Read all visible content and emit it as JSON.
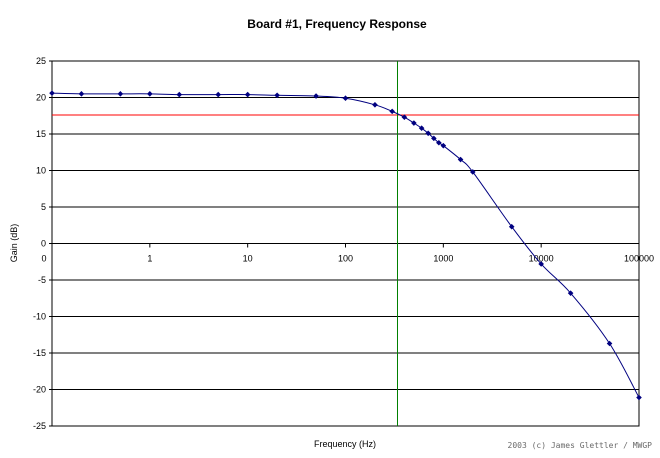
{
  "chart_data": {
    "type": "scatter",
    "title": "Board #1, Frequency Response",
    "xlabel": "Frequency (Hz)",
    "ylabel": "Gain (dB)",
    "xscale": "log",
    "xlim": [
      0.1,
      100000
    ],
    "ylim": [
      -25,
      25
    ],
    "y_ticks": [
      25,
      20,
      15,
      10,
      5,
      0,
      -5,
      -10,
      -15,
      -20,
      -25
    ],
    "x_tick_labels": [
      "0",
      "1",
      "10",
      "100",
      "1000",
      "10000",
      "100000"
    ],
    "grid": "horizontal",
    "legend": "none",
    "series": [
      {
        "color": "#000080",
        "marker": "diamond",
        "line": "smooth",
        "points": [
          [
            0.1,
            20.6
          ],
          [
            0.2,
            20.5
          ],
          [
            0.5,
            20.5
          ],
          [
            1,
            20.5
          ],
          [
            2,
            20.4
          ],
          [
            5,
            20.4
          ],
          [
            10,
            20.4
          ],
          [
            20,
            20.3
          ],
          [
            50,
            20.2
          ],
          [
            100,
            19.9
          ],
          [
            200,
            19.0
          ],
          [
            300,
            18.1
          ],
          [
            400,
            17.3
          ],
          [
            500,
            16.5
          ],
          [
            600,
            15.8
          ],
          [
            700,
            15.1
          ],
          [
            800,
            14.4
          ],
          [
            900,
            13.8
          ],
          [
            1000,
            13.4
          ],
          [
            1500,
            11.5
          ],
          [
            2000,
            9.8
          ],
          [
            5000,
            2.3
          ],
          [
            10000,
            -2.8
          ],
          [
            20000,
            -6.8
          ],
          [
            50000,
            -13.7
          ],
          [
            100000,
            -21.1
          ]
        ]
      }
    ],
    "reference_lines": [
      {
        "orientation": "horizontal",
        "value": 17.6,
        "color": "#ff0000"
      },
      {
        "orientation": "vertical",
        "value": 340,
        "color": "#008000"
      }
    ]
  },
  "credit": "2003 (c) James Glettler / MWGP"
}
